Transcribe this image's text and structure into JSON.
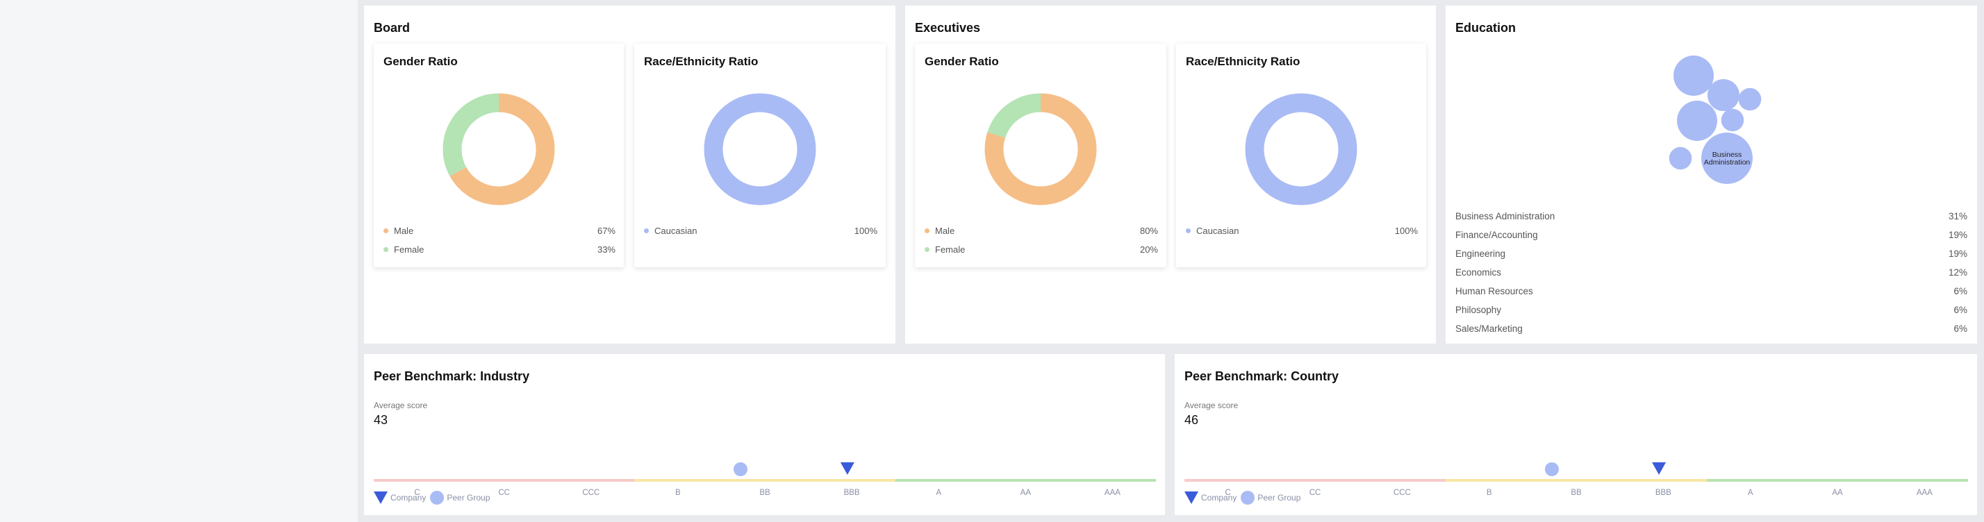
{
  "colors": {
    "male": "#f5be86",
    "female": "#b4e3b4",
    "caucasian": "#a9bbf5",
    "bubble": "#a9bbf5",
    "company_marker": "#3b5bdb",
    "peer_marker": "#a9bbf5",
    "band_c": "#f8caca",
    "band_b": "#f9e6a6",
    "band_a": "#b8e3b2"
  },
  "board": {
    "title": "Board",
    "gender": {
      "title": "Gender Ratio",
      "items": [
        {
          "label": "Male",
          "value": "67%",
          "num": 67,
          "color": "#f5be86"
        },
        {
          "label": "Female",
          "value": "33%",
          "num": 33,
          "color": "#b4e3b4"
        }
      ]
    },
    "race": {
      "title": "Race/Ethnicity Ratio",
      "items": [
        {
          "label": "Caucasian",
          "value": "100%",
          "num": 100,
          "color": "#a9bbf5"
        }
      ]
    }
  },
  "executives": {
    "title": "Executives",
    "gender": {
      "title": "Gender Ratio",
      "items": [
        {
          "label": "Male",
          "value": "80%",
          "num": 80,
          "color": "#f5be86"
        },
        {
          "label": "Female",
          "value": "20%",
          "num": 20,
          "color": "#b4e3b4"
        }
      ]
    },
    "race": {
      "title": "Race/Ethnicity Ratio",
      "items": [
        {
          "label": "Caucasian",
          "value": "100%",
          "num": 100,
          "color": "#a9bbf5"
        }
      ]
    }
  },
  "education": {
    "title": "Education",
    "bubble_label": "Business Administration",
    "items": [
      {
        "label": "Business Administration",
        "value": "31%"
      },
      {
        "label": "Finance/Accounting",
        "value": "19%"
      },
      {
        "label": "Engineering",
        "value": "19%"
      },
      {
        "label": "Economics",
        "value": "12%"
      },
      {
        "label": "Human Resources",
        "value": "6%"
      },
      {
        "label": "Philosophy",
        "value": "6%"
      },
      {
        "label": "Sales/Marketing",
        "value": "6%"
      }
    ]
  },
  "bench_industry": {
    "title": "Peer Benchmark: Industry",
    "avg_label": "Average score",
    "score": "43"
  },
  "bench_country": {
    "title": "Peer Benchmark: Country",
    "avg_label": "Average score",
    "score": "46"
  },
  "bench_legend": {
    "company": "Company",
    "peer": "Peer Group"
  },
  "chart_data": [
    {
      "type": "pie",
      "title": "Gender Ratio",
      "group": "Board",
      "categories": [
        "Male",
        "Female"
      ],
      "values": [
        67,
        33
      ]
    },
    {
      "type": "pie",
      "title": "Race/Ethnicity Ratio",
      "group": "Board",
      "categories": [
        "Caucasian"
      ],
      "values": [
        100
      ]
    },
    {
      "type": "pie",
      "title": "Gender Ratio",
      "group": "Executives",
      "categories": [
        "Male",
        "Female"
      ],
      "values": [
        80,
        20
      ]
    },
    {
      "type": "pie",
      "title": "Race/Ethnicity Ratio",
      "group": "Executives",
      "categories": [
        "Caucasian"
      ],
      "values": [
        100
      ]
    },
    {
      "type": "scatter",
      "title": "Education",
      "categories": [
        "Business Administration",
        "Finance/Accounting",
        "Engineering",
        "Economics",
        "Human Resources",
        "Philosophy",
        "Sales/Marketing"
      ],
      "values": [
        31,
        19,
        19,
        12,
        6,
        6,
        6
      ]
    },
    {
      "type": "scatter",
      "title": "Peer Benchmark: Industry",
      "categories": [
        "C",
        "CC",
        "CCC",
        "B",
        "BB",
        "BBB",
        "A",
        "AA",
        "AAA"
      ],
      "series": [
        {
          "name": "Company",
          "values": [
            5.45
          ]
        },
        {
          "name": "Peer Group",
          "values": [
            4.22
          ]
        }
      ]
    },
    {
      "type": "scatter",
      "title": "Peer Benchmark: Country",
      "categories": [
        "C",
        "CC",
        "CCC",
        "B",
        "BB",
        "BBB",
        "A",
        "AA",
        "AAA"
      ],
      "series": [
        {
          "name": "Company",
          "values": [
            5.45
          ]
        },
        {
          "name": "Peer Group",
          "values": [
            4.22
          ]
        }
      ]
    }
  ]
}
